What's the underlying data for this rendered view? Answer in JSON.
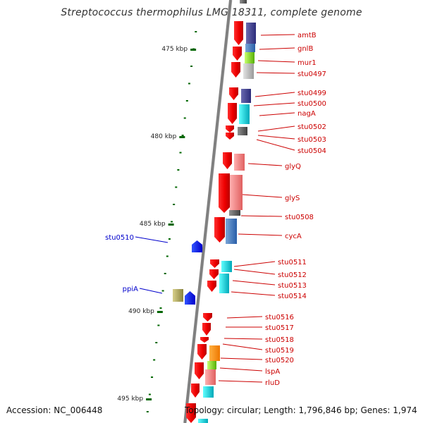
{
  "title": "Streptococcus thermophilus LMG 18311, complete genome",
  "accession": "Accession: NC_006448",
  "topology": "Topology: circular; Length: 1,796,846 bp; Genes: 1,974",
  "colors": {
    "backbone": "#808080",
    "cds": "#ff0000",
    "label_right": "#cc0000",
    "label_left": "#0000cc",
    "tick": "#006600"
  },
  "ticks": [
    "475 kbp",
    "480 kbp",
    "485 kbp",
    "490 kbp",
    "495 kbp"
  ],
  "genes_right": [
    "amtB",
    "gnlB",
    "mur1",
    "stu0497",
    "stu0499",
    "stu0500",
    "nagA",
    "stu0502",
    "stu0503",
    "stu0504",
    "glyQ",
    "glyS",
    "stu0508",
    "cycA",
    "stu0511",
    "stu0512",
    "stu0513",
    "stu0514",
    "stu0516",
    "stu0517",
    "stu0518",
    "stu0519",
    "stu0520",
    "lspA",
    "rluD"
  ],
  "genes_left": [
    "stu0510",
    "ppiA"
  ]
}
